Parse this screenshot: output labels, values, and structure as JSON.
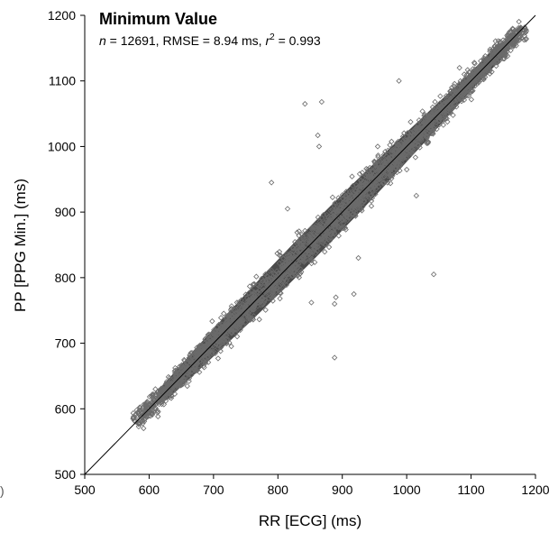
{
  "chart_data": {
    "type": "scatter",
    "title": "Minimum Value",
    "subtitle": {
      "n_symbol": "n",
      "n_text": " = 12691, RMSE = 8.94 ms, ",
      "r_symbol": "r",
      "r_sup": "2",
      "r_text": " = 0.993"
    },
    "xlabel": "RR [ECG] (ms)",
    "ylabel": "PP [PPG Min.] (ms)",
    "xlim": [
      500,
      1200
    ],
    "ylim": [
      500,
      1200
    ],
    "x_ticks": [
      500,
      600,
      700,
      800,
      900,
      1000,
      1100,
      1200
    ],
    "y_ticks": [
      500,
      600,
      700,
      800,
      900,
      1000,
      1100,
      1200
    ],
    "grid": false,
    "legend": "none",
    "marker": "open-diamond",
    "identity_line": {
      "x": [
        500,
        1200
      ],
      "y": [
        500,
        1200
      ]
    },
    "n_points": 12691,
    "rmse_ms": 8.94,
    "r2": 0.993,
    "dense_band": {
      "x_range": [
        620,
        1150
      ],
      "width_ms": [
        14,
        28
      ],
      "label": "dense diagonal cloud"
    },
    "outliers": [
      {
        "x": 842,
        "y": 1065
      },
      {
        "x": 868,
        "y": 1068
      },
      {
        "x": 862,
        "y": 1017
      },
      {
        "x": 864,
        "y": 1000
      },
      {
        "x": 988,
        "y": 1100
      },
      {
        "x": 790,
        "y": 945
      },
      {
        "x": 1042,
        "y": 805
      },
      {
        "x": 925,
        "y": 830
      },
      {
        "x": 890,
        "y": 770
      },
      {
        "x": 888,
        "y": 760
      },
      {
        "x": 852,
        "y": 762
      },
      {
        "x": 918,
        "y": 775
      },
      {
        "x": 888,
        "y": 678
      },
      {
        "x": 1015,
        "y": 925
      },
      {
        "x": 1082,
        "y": 1120
      },
      {
        "x": 1105,
        "y": 1128
      },
      {
        "x": 1040,
        "y": 1050
      },
      {
        "x": 815,
        "y": 905
      },
      {
        "x": 760,
        "y": 780
      },
      {
        "x": 650,
        "y": 665
      },
      {
        "x": 955,
        "y": 1000
      },
      {
        "x": 610,
        "y": 622
      },
      {
        "x": 575,
        "y": 585
      },
      {
        "x": 1145,
        "y": 1160
      },
      {
        "x": 1160,
        "y": 1175
      }
    ],
    "colors": {
      "axis": "#000000",
      "marker_stroke": "#6b6b6b",
      "dense_fill": "#4a4a4a",
      "identity_line": "#000000"
    }
  },
  "stray_glyph": ")"
}
